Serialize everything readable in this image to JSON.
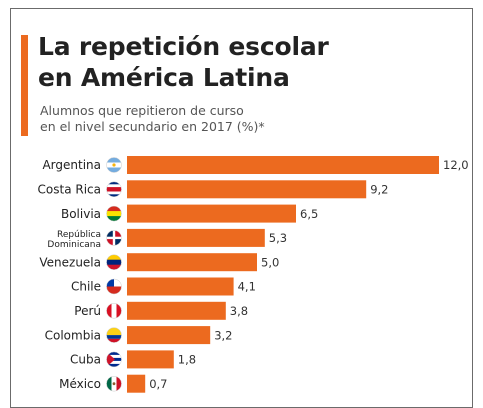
{
  "header": {
    "title_line1": "La repetición escolar",
    "title_line2": "en América Latina",
    "subtitle_line1": "Alumnos que repitieron de curso",
    "subtitle_line2": "en el nivel secundario en 2017 (%)*"
  },
  "colors": {
    "accent": "#ec6a1f",
    "bar": "#ec6a1f",
    "text": "#222222"
  },
  "chart_data": {
    "type": "bar",
    "orientation": "horizontal",
    "title": "La repetición escolar en América Latina",
    "subtitle": "Alumnos que repitieron de curso en el nivel secundario en 2017 (%)*",
    "categories": [
      "Argentina",
      "Costa Rica",
      "Bolivia",
      "República Dominicana",
      "Venezuela",
      "Chile",
      "Perú",
      "Colombia",
      "Cuba",
      "México"
    ],
    "values": [
      12.0,
      9.2,
      6.5,
      5.3,
      5.0,
      4.1,
      3.8,
      3.2,
      1.8,
      0.7
    ],
    "value_labels": [
      "12,0",
      "9,2",
      "6,5",
      "5,3",
      "5,0",
      "4,1",
      "3,8",
      "3,2",
      "1,8",
      "0,7"
    ],
    "category_label_lines": [
      [
        "Argentina"
      ],
      [
        "Costa Rica"
      ],
      [
        "Bolivia"
      ],
      [
        "República",
        "Dominicana"
      ],
      [
        "Venezuela"
      ],
      [
        "Chile"
      ],
      [
        "Perú"
      ],
      [
        "Colombia"
      ],
      [
        "Cuba"
      ],
      [
        "México"
      ]
    ],
    "flag_icons": [
      "argentina-flag-icon",
      "costa-rica-flag-icon",
      "bolivia-flag-icon",
      "dominican-republic-flag-icon",
      "venezuela-flag-icon",
      "chile-flag-icon",
      "peru-flag-icon",
      "colombia-flag-icon",
      "cuba-flag-icon",
      "mexico-flag-icon"
    ],
    "xlim": [
      0,
      12
    ],
    "grid": false,
    "legend": "none"
  }
}
